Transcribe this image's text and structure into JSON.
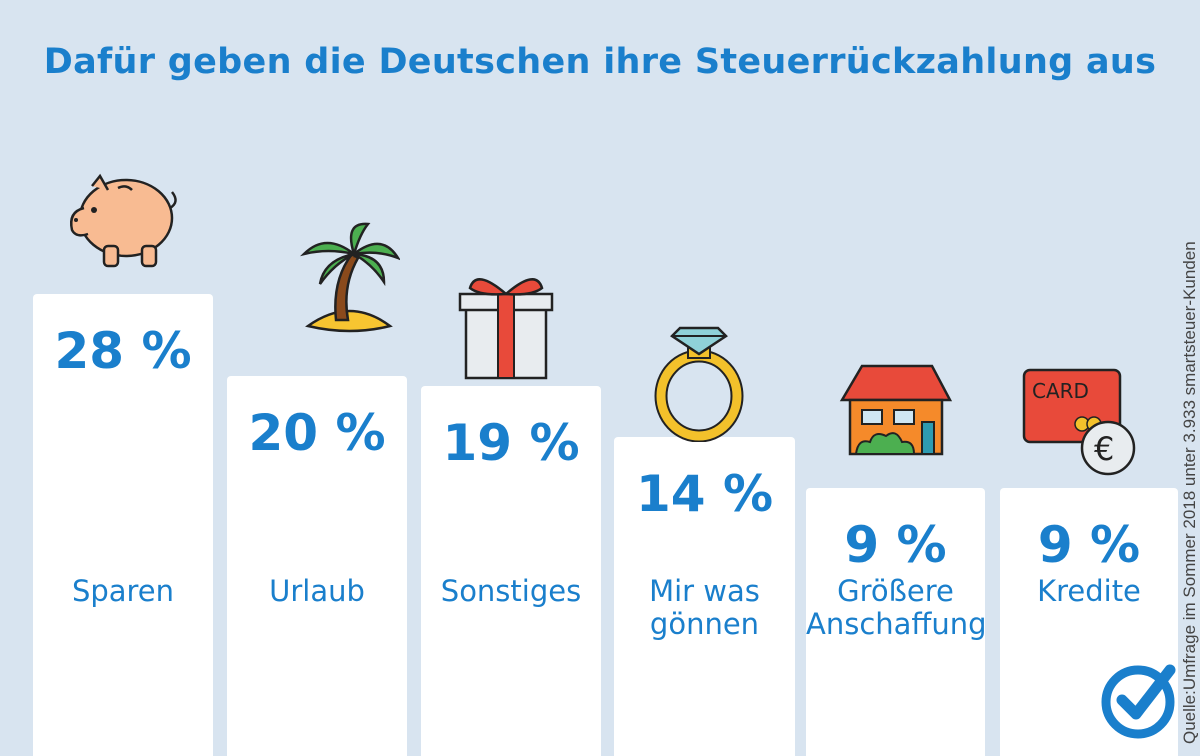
{
  "chart_data": {
    "type": "bar",
    "title": "Dafür geben die Deutschen ihre Steuerrückzahlung aus",
    "categories": [
      "Sparen",
      "Urlaub",
      "Sonstiges",
      "Mir was\ngönnen",
      "Größere\nAnschaffung",
      "Kredite"
    ],
    "values": [
      28,
      20,
      19,
      14,
      9,
      9
    ],
    "value_labels": [
      "28 %",
      "20 %",
      "19 %",
      "14 %",
      "9 %",
      "9 %"
    ],
    "unit": "%",
    "icons": [
      "piggy-bank-icon",
      "palm-island-icon",
      "gift-icon",
      "ring-icon",
      "house-icon",
      "credit-card-icon"
    ],
    "colors": {
      "bar": "#ffffff",
      "text": "#1a7fcc",
      "background": "#d8e4f0"
    },
    "source": "Quelle:Umfrage im Sommer 2018 unter 3.933 smartsteuer-Kunden"
  }
}
